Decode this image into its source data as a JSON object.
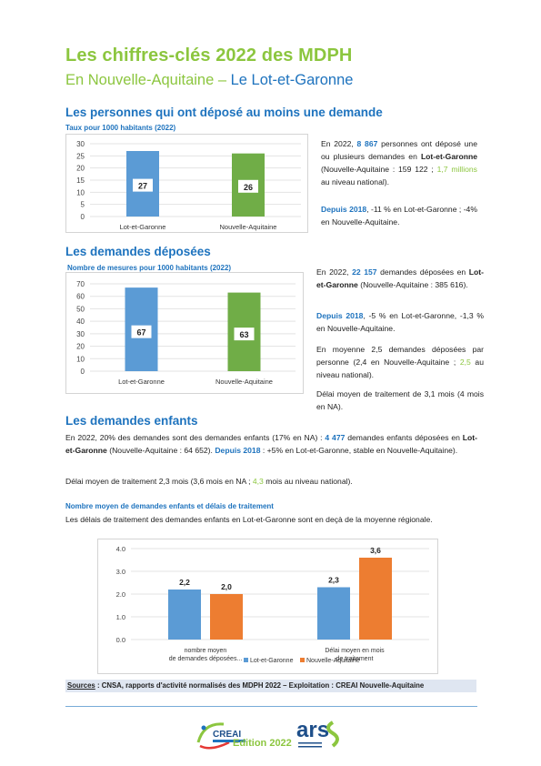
{
  "header": {
    "title": "Les chiffres-clés 2022 des MDPH",
    "subtitle_part1": "En Nouvelle-Aquitaine – ",
    "subtitle_part2": "Le Lot-et-Garonne"
  },
  "section1": {
    "heading": "Les personnes qui ont déposé au moins une demande",
    "chart_caption": "Taux pour 1000 habitants (2022)",
    "p1": [
      "En 2022, ",
      "8 867",
      " personnes ont déposé une ou plusieurs demandes en ",
      "Lot-et-Garonne",
      " (Nouvelle-Aquitaine : 159 122 ; ",
      "1,7 millions",
      " au niveau national)."
    ],
    "p2": [
      "Depuis 2018",
      ", -11 % en Lot-et-Garonne ; -4% en Nouvelle-Aquitaine."
    ]
  },
  "section2": {
    "heading": "Les demandes déposées",
    "chart_caption": "Nombre de mesures pour 1000 habitants (2022)",
    "p1": [
      "En 2022, ",
      "22 157",
      " demandes déposées en ",
      "Lot-et-Garonne",
      " (Nouvelle-Aquitaine : 385 616)."
    ],
    "p2": [
      "Depuis 2018",
      ", -5 % en Lot-et-Garonne, -1,3 % en Nouvelle-Aquitaine."
    ],
    "p3": [
      "En moyenne 2,5 demandes déposées par personne (2,4 en Nouvelle-Aquitaine ; ",
      "2,5",
      " au niveau national)."
    ],
    "p4": "Délai moyen de traitement de 3,1 mois (4 mois en NA)."
  },
  "section3": {
    "heading": "Les demandes enfants",
    "p1": [
      "En 2022, 20% des demandes sont des demandes enfants (17% en NA) : ",
      "4 477",
      " demandes enfants déposées en ",
      "Lot-et-Garonne",
      " (Nouvelle-Aquitaine : 64 652). ",
      "Depuis 2018",
      " : +5% en Lot-et-Garonne, stable en Nouvelle-Aquitaine)."
    ],
    "p2": [
      "Délai moyen de traitement 2,3 mois (3,6 mois en NA ; ",
      "4,3",
      " mois au niveau national)."
    ],
    "chart_caption": "Nombre moyen de demandes enfants et délais de traitement",
    "chart_intro": "Les délais de traitement des demandes enfants en Lot-et-Garonne sont en deçà de la moyenne régionale."
  },
  "sources": {
    "label": "Sources",
    "text": " : CNSA, rapports d'activité normalisés des MDPH 2022 – Exploitation : CREAI Nouvelle-Aquitaine"
  },
  "footer": {
    "edition": "Edition 2022",
    "logo_creai": "CREAI",
    "logo_ars": "ars"
  },
  "colors": {
    "blue": "#5b9bd5",
    "green": "#70ad47",
    "orange": "#ed7d31",
    "heading_blue": "#1e73be",
    "title_green": "#8cc63f"
  },
  "chart_data": [
    {
      "type": "bar",
      "categories": [
        "Lot-et-Garonne",
        "Nouvelle-Aquitaine"
      ],
      "values": [
        27,
        26
      ],
      "value_labels": [
        "27",
        "26"
      ],
      "yticks": [
        "30",
        "25",
        "20",
        "15",
        "10",
        "5",
        "0"
      ],
      "ylim": [
        0,
        30
      ],
      "title": "Taux pour 1000 habitants (2022)",
      "grid": true
    },
    {
      "type": "bar",
      "categories": [
        "Lot-et-Garonne",
        "Nouvelle-Aquitaine"
      ],
      "values": [
        67,
        63
      ],
      "value_labels": [
        "67",
        "63"
      ],
      "yticks": [
        "70",
        "60",
        "50",
        "40",
        "30",
        "20",
        "10",
        "0"
      ],
      "ylim": [
        0,
        70
      ],
      "title": "Nombre de mesures pour 1000 habitants (2022)",
      "grid": true
    },
    {
      "type": "bar",
      "categories": [
        "nombre moyen de demandes déposées...",
        "Délai moyen en mois de traitement"
      ],
      "series": [
        {
          "name": "Lot-et-Garonne",
          "values": [
            2.2,
            2.3
          ],
          "labels": [
            "2,2",
            "2,3"
          ]
        },
        {
          "name": "Nouvelle-Aquitaine",
          "values": [
            2.0,
            3.6
          ],
          "labels": [
            "2,0",
            "3,6"
          ]
        }
      ],
      "yticks": [
        "4.0",
        "3.0",
        "2.0",
        "1.0",
        "0.0"
      ],
      "ylim": [
        0,
        4
      ],
      "title": "Nombre moyen de demandes enfants et délais de traitement",
      "legend": "bottom-right",
      "grid": true
    }
  ]
}
